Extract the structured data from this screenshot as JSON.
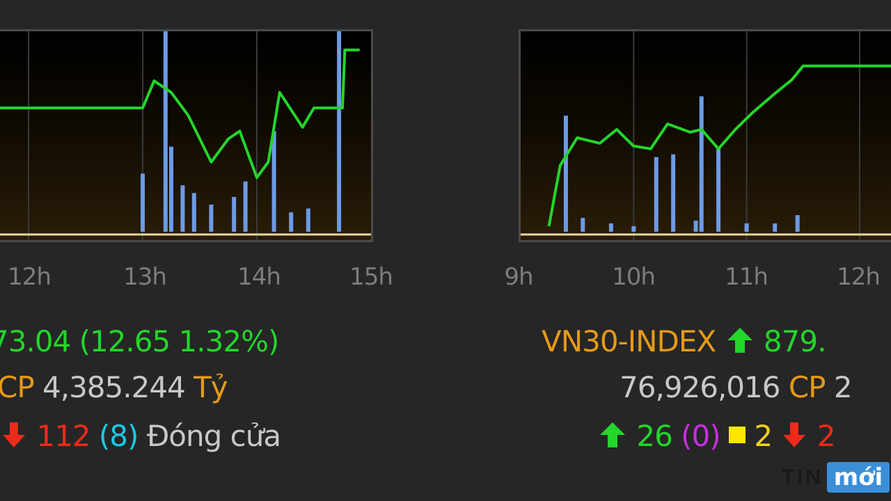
{
  "chart_data": [
    {
      "type": "line",
      "title": "",
      "series": [
        {
          "name": "index",
          "color": "#22d62a",
          "x": [
            11.0,
            12.0,
            13.0,
            13.1,
            13.25,
            13.4,
            13.6,
            13.75,
            13.85,
            14.0,
            14.1,
            14.2,
            14.4,
            14.5,
            14.6,
            14.75,
            14.77,
            14.9
          ],
          "values": [
            3.2,
            3.2,
            3.2,
            3.9,
            3.6,
            3.0,
            1.8,
            2.4,
            2.6,
            1.4,
            1.8,
            3.6,
            2.7,
            3.2,
            3.2,
            3.2,
            4.7,
            4.7
          ]
        },
        {
          "name": "volume",
          "color": "#6d9be6",
          "x": [
            13.0,
            13.2,
            13.25,
            13.35,
            13.45,
            13.6,
            13.8,
            13.9,
            14.15,
            14.3,
            14.45,
            14.72
          ],
          "values": [
            1.5,
            5.3,
            2.2,
            1.2,
            1.0,
            0.7,
            0.9,
            1.3,
            2.6,
            0.5,
            0.6,
            7.6
          ]
        }
      ],
      "xlim": [
        11.75,
        15.0
      ],
      "ylim": [
        0,
        5
      ],
      "x_tick_labels": [
        "12h",
        "13h",
        "14h",
        "15h"
      ]
    },
    {
      "type": "line",
      "title": "",
      "series": [
        {
          "name": "index",
          "color": "#22d62a",
          "x": [
            9.25,
            9.35,
            9.5,
            9.7,
            9.85,
            10.0,
            10.15,
            10.3,
            10.5,
            10.6,
            10.75,
            10.9,
            11.05,
            11.25,
            11.4,
            11.5,
            12.0,
            12.45
          ],
          "values": [
            0.2,
            2.4,
            3.4,
            3.2,
            3.7,
            3.1,
            3.0,
            3.9,
            3.6,
            3.7,
            3.0,
            3.7,
            4.3,
            5.0,
            5.5,
            6.0,
            6.0,
            6.0
          ]
        },
        {
          "name": "volume",
          "color": "#6d9be6",
          "x": [
            9.4,
            9.55,
            9.8,
            10.0,
            10.2,
            10.35,
            10.55,
            10.6,
            10.75,
            11.0,
            11.25,
            11.45
          ],
          "values": [
            4.2,
            0.5,
            0.3,
            0.2,
            2.7,
            2.8,
            0.4,
            4.9,
            3.0,
            0.3,
            0.3,
            0.6
          ]
        }
      ],
      "xlim": [
        9.0,
        12.45
      ],
      "ylim": [
        0,
        7
      ],
      "x_tick_labels": [
        "9h",
        "10h",
        "11h",
        "12h"
      ]
    }
  ],
  "left": {
    "value_change": "73.04 (12.65 1.32%)",
    "cp_label": "CP",
    "value_traded": "4,385.244",
    "currency": "Tỷ",
    "down_count": "112",
    "ceiling_count": "(8)",
    "status": "Đóng cửa"
  },
  "right": {
    "index_name": "VN30-INDEX",
    "index_value": "879.",
    "volume": "76,926,016",
    "cp_label": "CP",
    "value_prefix": "2",
    "up_count": "26",
    "ceiling_count": "(0)",
    "unchanged_count": "2",
    "down_count": "2"
  },
  "watermark": {
    "part_a": "TIN",
    "part_b": "mới"
  },
  "icons": {
    "up": "arrow-up-icon",
    "down": "arrow-down-icon",
    "unchanged": "square-icon"
  },
  "colors": {
    "up": "#22d62a",
    "down": "#ee2a1a",
    "label": "#e69a17",
    "ceiling": "#1fc7e6",
    "floor": "#c431e0",
    "ref": "#f4d11a",
    "volume": "#6d9be6"
  }
}
